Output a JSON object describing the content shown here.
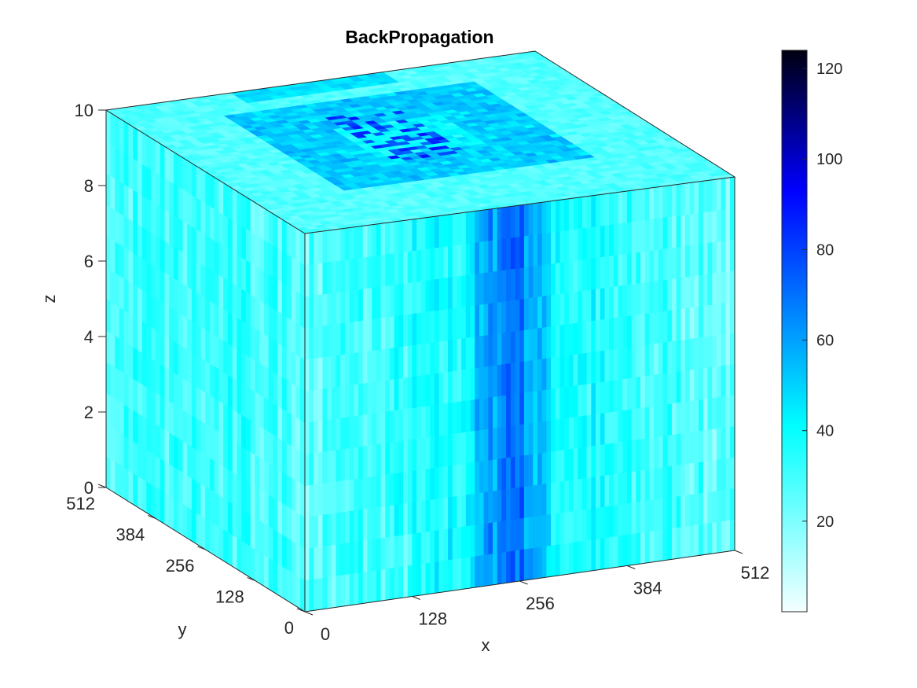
{
  "chart_data": {
    "type": "volume-slice-3d",
    "title": "BackPropagation",
    "xlabel": "x",
    "ylabel": "y",
    "zlabel": "z",
    "xlim": [
      0,
      512
    ],
    "ylim": [
      0,
      512
    ],
    "zlim": [
      0,
      10
    ],
    "x_ticks": [
      "0",
      "128",
      "256",
      "384",
      "512"
    ],
    "y_ticks": [
      "0",
      "128",
      "256",
      "384",
      "512"
    ],
    "z_ticks": [
      "0",
      "2",
      "4",
      "6",
      "8",
      "10"
    ],
    "colorbar": {
      "range": [
        0,
        124
      ],
      "ticks": [
        "20",
        "40",
        "60",
        "80",
        "100",
        "120"
      ],
      "tick_values": [
        20,
        40,
        60,
        80,
        100,
        120
      ],
      "colormap": [
        "#ffffff",
        "#00ffff",
        "#0000ff",
        "#000000"
      ]
    },
    "front_face_column_intensity": [
      {
        "x": 0,
        "v": 25
      },
      {
        "x": 60,
        "v": 30
      },
      {
        "x": 128,
        "v": 32
      },
      {
        "x": 190,
        "v": 40
      },
      {
        "x": 220,
        "v": 60
      },
      {
        "x": 250,
        "v": 75
      },
      {
        "x": 275,
        "v": 55
      },
      {
        "x": 300,
        "v": 40
      },
      {
        "x": 384,
        "v": 30
      },
      {
        "x": 450,
        "v": 28
      },
      {
        "x": 512,
        "v": 25
      }
    ],
    "top_face_peak_value": 90,
    "side_face_mean_value": 30
  }
}
